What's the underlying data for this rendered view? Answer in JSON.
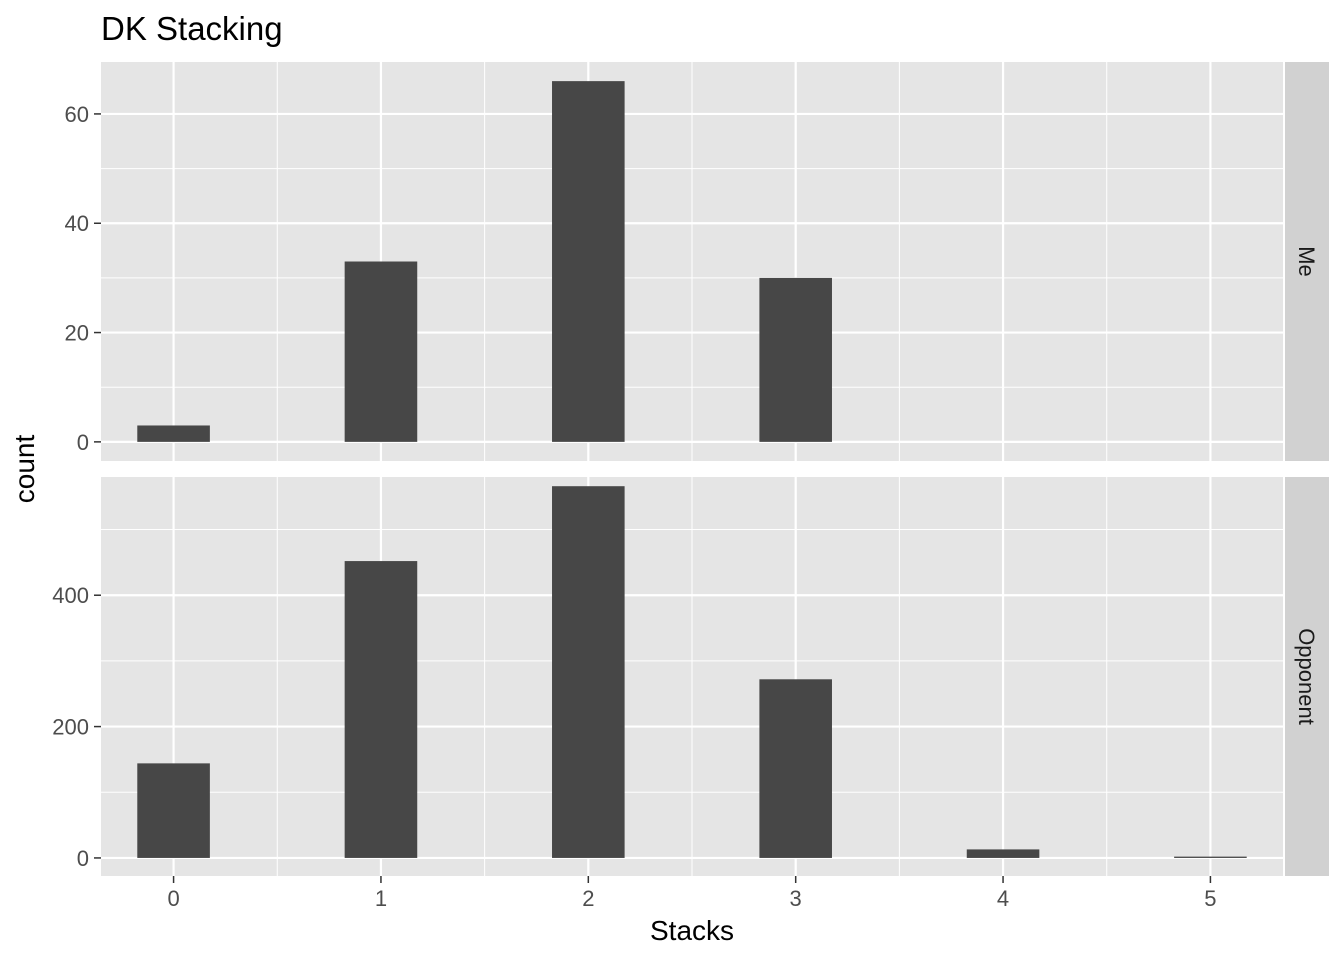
{
  "chart_data": {
    "type": "bar",
    "title": "DK Stacking",
    "xlabel": "Stacks",
    "ylabel": "count",
    "x_ticks": [
      "0",
      "1",
      "2",
      "3",
      "4",
      "5"
    ],
    "xlim": [
      -0.35,
      5.35
    ],
    "grid": true,
    "colors": {
      "bar": "#474747",
      "panel_background": "#e5e5e5",
      "strip_background": "#d1d1d1",
      "gridline": "#ffffff"
    },
    "facets": [
      {
        "label": "Me",
        "ylim": [
          -3.5,
          69.5
        ],
        "y_ticks": [
          0,
          20,
          40,
          60
        ],
        "x": [
          0,
          1,
          2,
          3,
          4,
          5
        ],
        "values": [
          3,
          33,
          66,
          30,
          0,
          0
        ]
      },
      {
        "label": "Opponent",
        "ylim": [
          -27.5,
          580
        ],
        "y_ticks": [
          0,
          200,
          400
        ],
        "x": [
          0,
          1,
          2,
          3,
          4,
          5
        ],
        "values": [
          144,
          452,
          566,
          272,
          13,
          2
        ]
      }
    ]
  }
}
